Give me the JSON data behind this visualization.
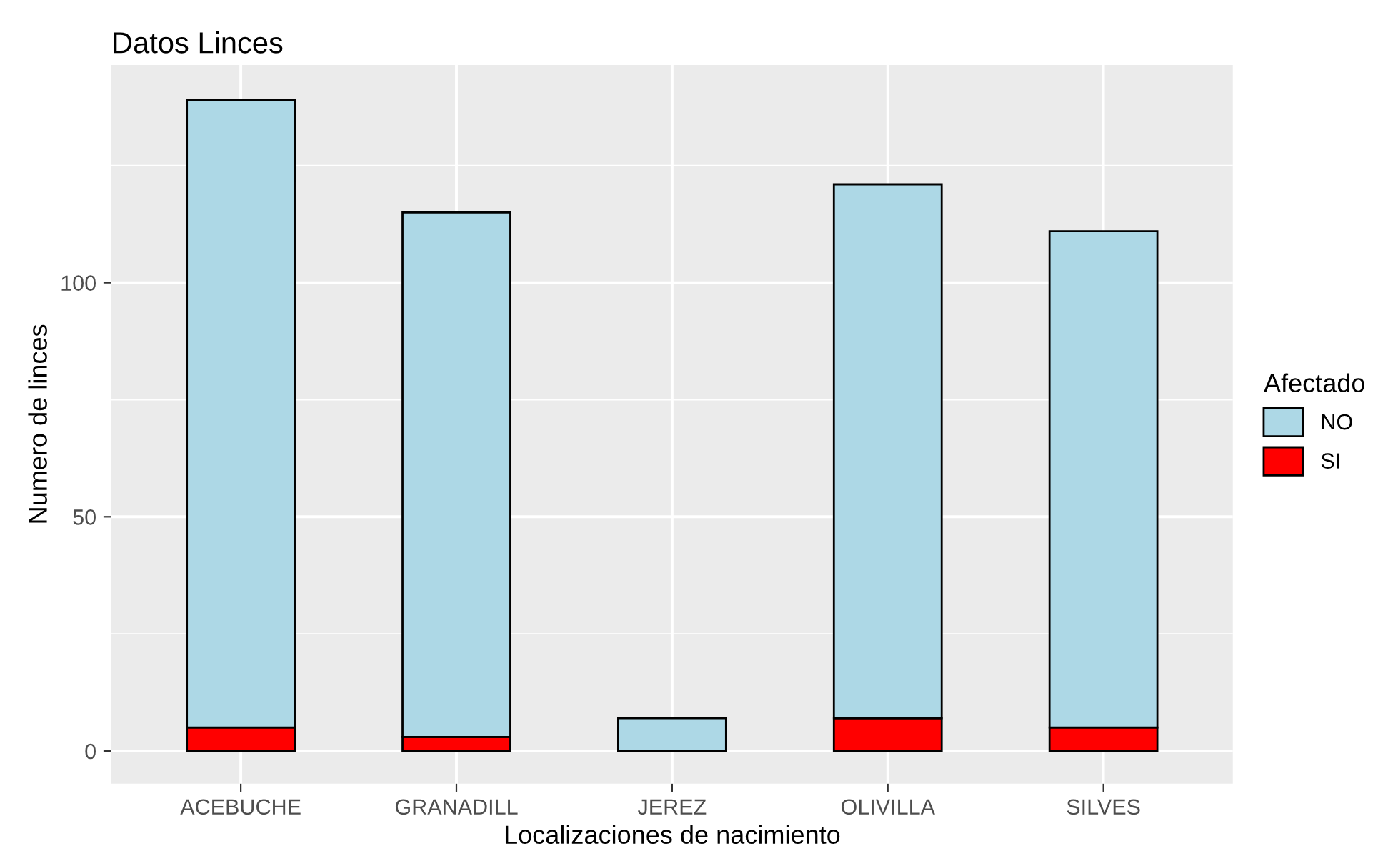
{
  "chart_data": {
    "type": "bar",
    "title": "Datos Linces",
    "xlabel": "Localizaciones de nacimiento",
    "ylabel": "Numero de linces",
    "legend_title": "Afectado",
    "categories": [
      "ACEBUCHE",
      "GRANADILL",
      "JEREZ",
      "OLIVILLA",
      "SILVES"
    ],
    "stacked": true,
    "series": [
      {
        "name": "SI",
        "color": "#ff0000",
        "values": [
          5,
          3,
          null,
          7,
          5
        ]
      },
      {
        "name": "NO",
        "color": "#add8e6",
        "values": [
          134,
          112,
          7,
          114,
          106
        ]
      }
    ],
    "ylim": [
      -7,
      146.5
    ],
    "yticks": [
      0,
      50,
      100
    ],
    "grid": true,
    "legend": "right"
  }
}
